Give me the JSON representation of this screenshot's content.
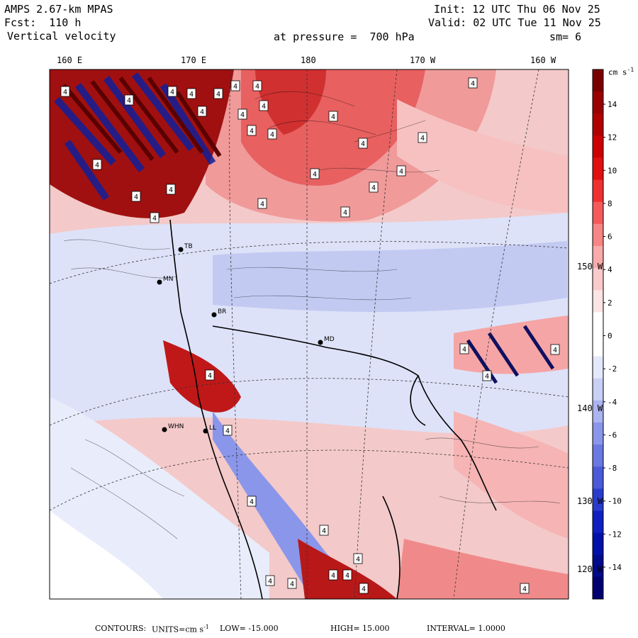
{
  "header": {
    "model": "AMPS 2.67-km MPAS",
    "fcst_label": "Fcst:",
    "fcst_value": "110 h",
    "field": "Vertical velocity",
    "init_label": "Init:",
    "init_value": "12 UTC Thu 06 Nov 25",
    "valid_label": "Valid:",
    "valid_value": "02 UTC Tue 11 Nov 25",
    "pressure_label": "at pressure =",
    "pressure_value": "700 hPa",
    "smooth_label": "sm=",
    "smooth_value": "6"
  },
  "longitude_labels": [
    "160 E",
    "170 E",
    "180",
    "170 W",
    "160 W"
  ],
  "latitude_labels": [
    "150 W",
    "140 W",
    "130 W",
    "120 W"
  ],
  "colorbar": {
    "units": "cm s",
    "units_exp": "-1",
    "ticks": [
      "14",
      "12",
      "10",
      "8",
      "6",
      "4",
      "2",
      "0",
      "-2",
      "-4",
      "-6",
      "-8",
      "-10",
      "-12",
      "-14"
    ],
    "colors_top_to_bottom": [
      "#7a0000",
      "#990000",
      "#b00000",
      "#cc0000",
      "#e01010",
      "#f03030",
      "#f55a5a",
      "#f78585",
      "#f9aaaa",
      "#fbcaca",
      "#fde4e4",
      "#ffffff",
      "#ffffff",
      "#e4e8fb",
      "#c8d0f5",
      "#aab4f0",
      "#8a96ea",
      "#6a78e2",
      "#4a5ad8",
      "#2a3ccc",
      "#1020c0",
      "#0010a8",
      "#000a8a",
      "#000070"
    ]
  },
  "stations": [
    "BR",
    "MD",
    "TB",
    "MN",
    "WHN",
    "LL"
  ],
  "contour_marker": "4",
  "footer": {
    "contours_label": "CONTOURS:",
    "units_label": "UNITS=cm s",
    "units_exp": "-1",
    "low_label": "LOW=",
    "low_value": "-15.000",
    "high_label": "HIGH=",
    "high_value": "15.000",
    "interval_label": "INTERVAL=",
    "interval_value": "1.0000"
  },
  "colors": {
    "red_strong": "#8b0000",
    "red_mid": "#e84848",
    "red_light": "#f7b8b8",
    "blue_strong": "#0b0b7a",
    "blue_mid": "#5a66dc",
    "blue_light": "#cdd3f4",
    "land": "#f2f4fb"
  }
}
